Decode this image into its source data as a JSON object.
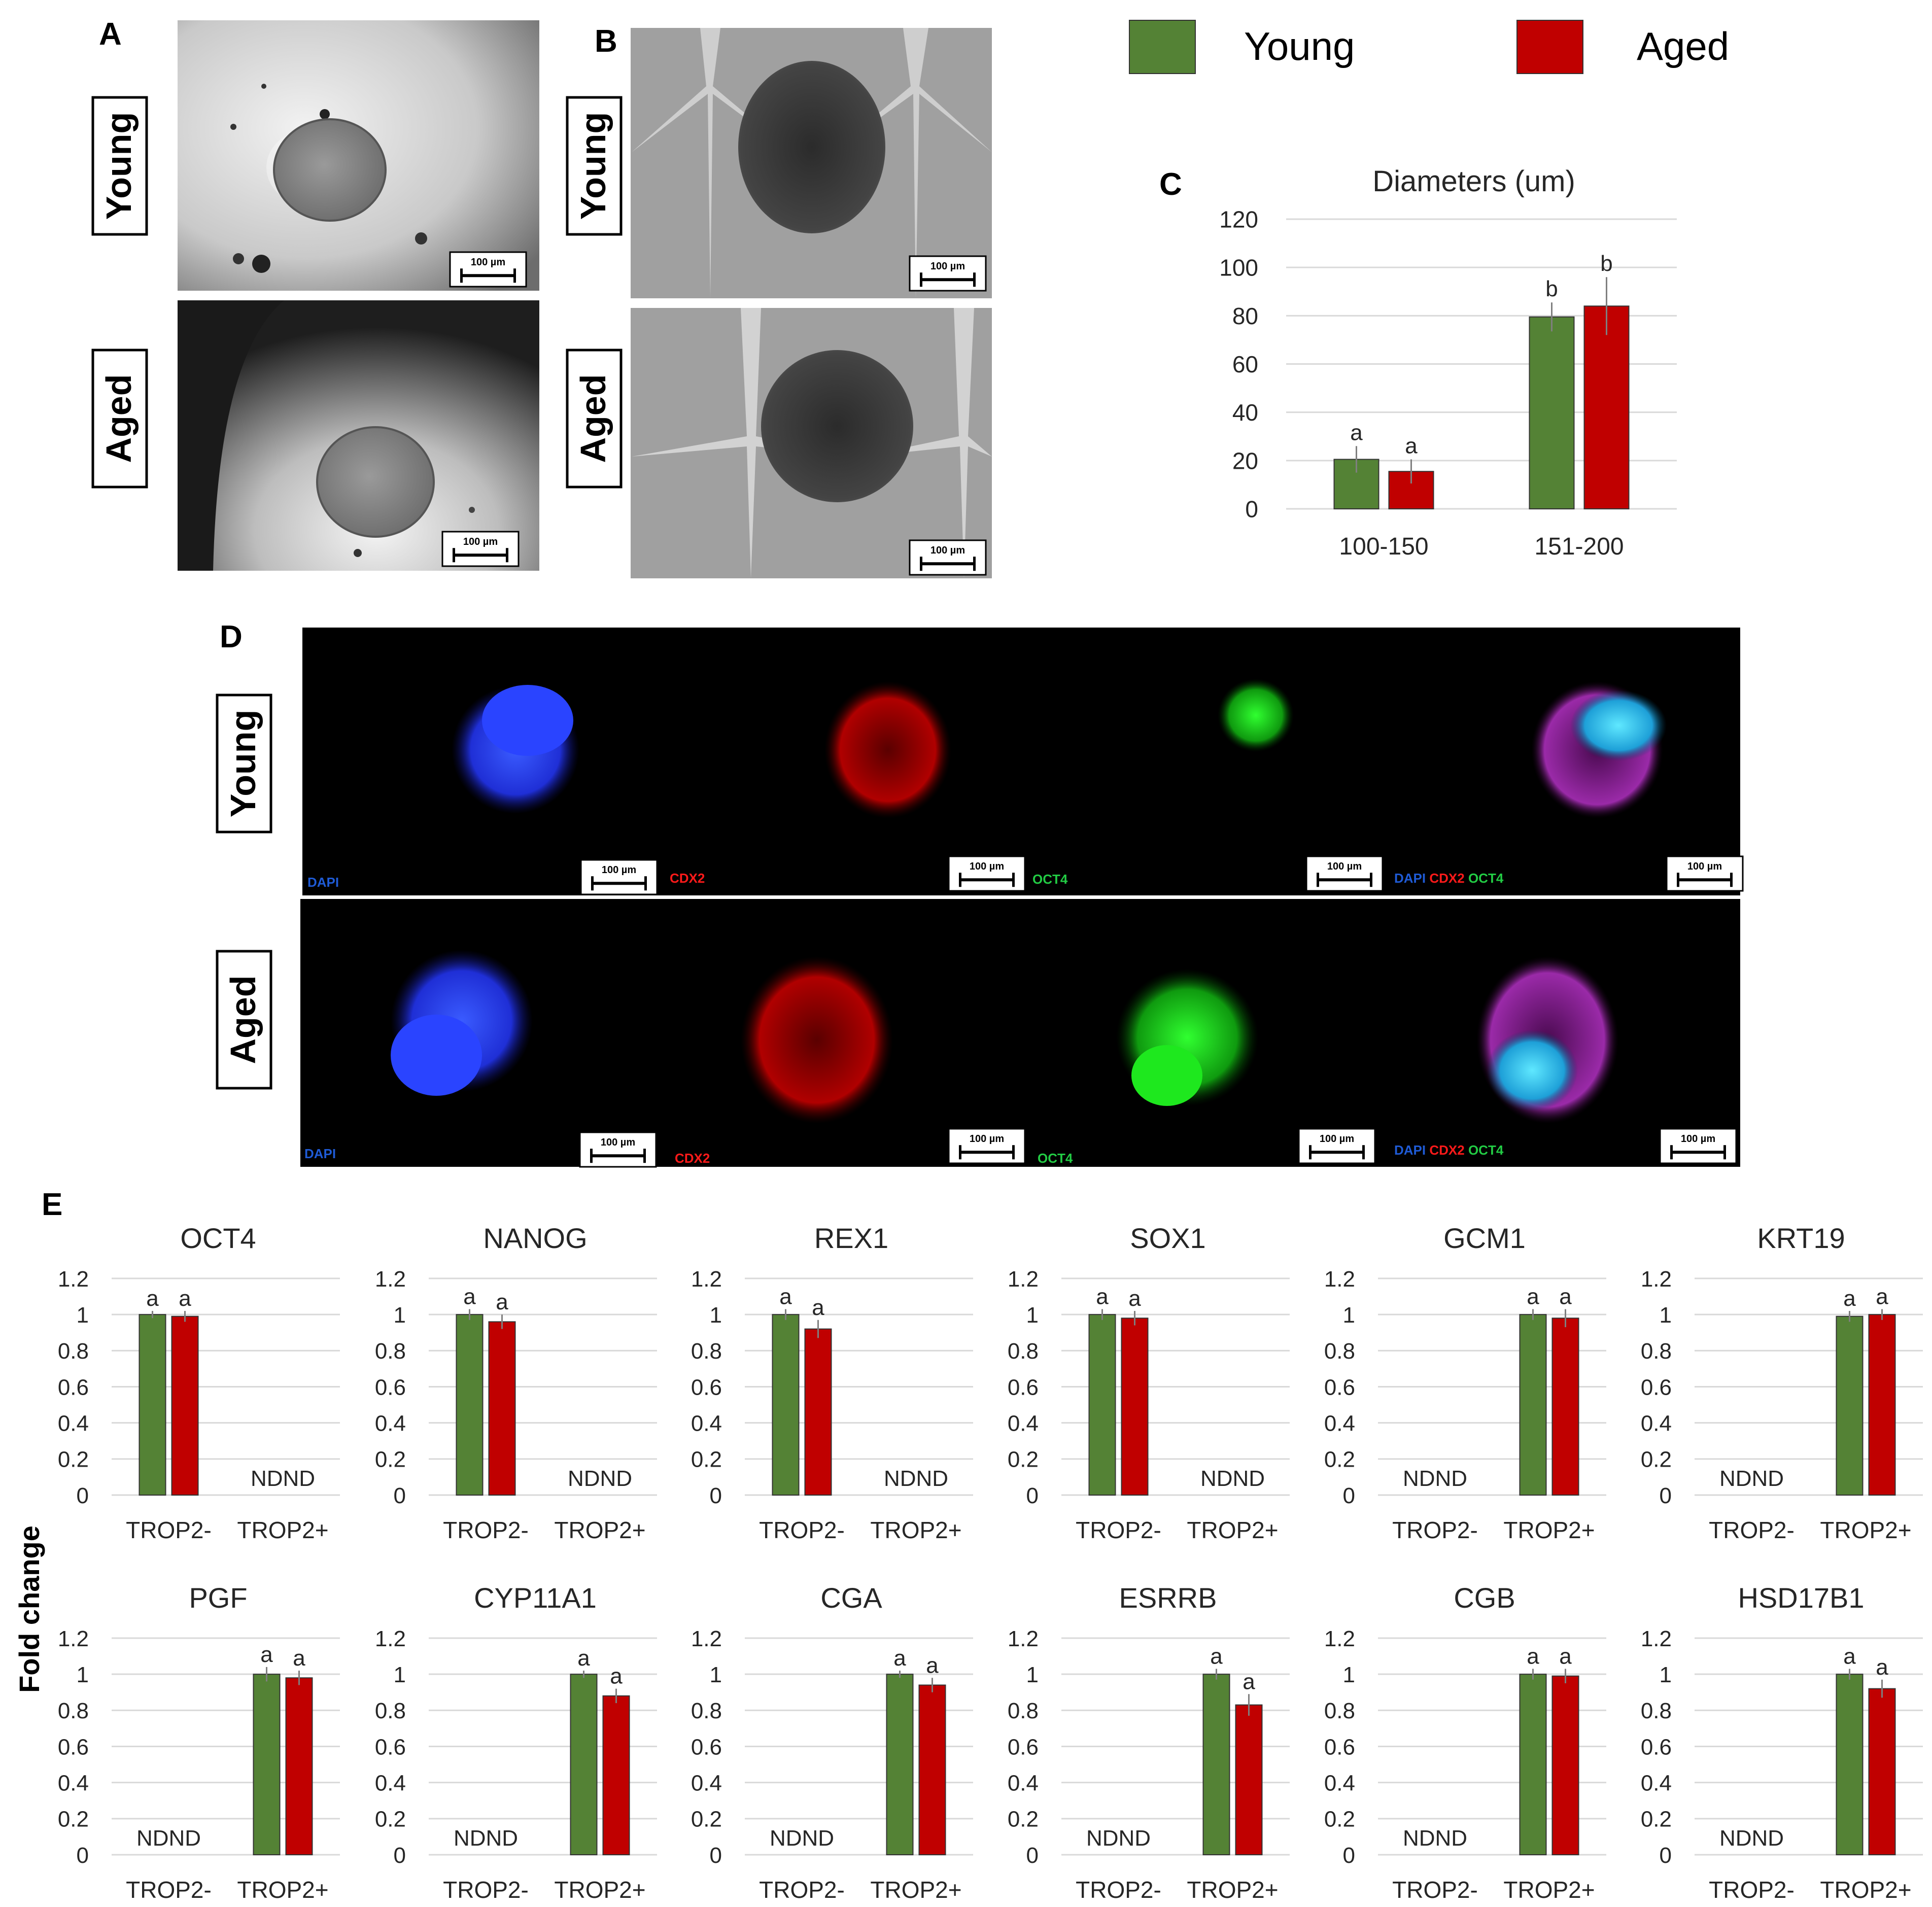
{
  "panel_letters": {
    "A": "A",
    "B": "B",
    "C": "C",
    "D": "D",
    "E": "E"
  },
  "row_labels": {
    "young": "Young",
    "aged": "Aged"
  },
  "scale_bar": "100 µm",
  "legend": [
    {
      "label": "Young",
      "color": "#548235"
    },
    {
      "label": "Aged",
      "color": "#c00000"
    }
  ],
  "stain_labels": {
    "dapi": "DAPI",
    "cdx2": "CDX2",
    "oct4": "OCT4",
    "merge": [
      "DAPI",
      "CDX2",
      "OCT4"
    ],
    "colors": {
      "dapi": "#1f5bd6",
      "cdx2": "#ff1a1a",
      "oct4": "#22cc44"
    }
  },
  "colors": {
    "young": "#548235",
    "aged": "#c00000",
    "grid": "#d9d9d9",
    "text": "#262626"
  },
  "fold_change_label": "Fold change",
  "nd_label": "ND",
  "chart_data": [
    {
      "type": "bar",
      "title": "Diameters (um)",
      "categories": [
        "100-150",
        "151-200"
      ],
      "series": [
        {
          "name": "Young",
          "values": [
            20.5,
            79.5
          ],
          "errors": [
            5.5,
            6.0
          ],
          "letters": [
            "a",
            "b"
          ]
        },
        {
          "name": "Aged",
          "values": [
            15.5,
            84.0
          ],
          "errors": [
            5.0,
            12.0
          ],
          "letters": [
            "a",
            "b"
          ]
        }
      ],
      "ylim": [
        0,
        120
      ],
      "yticks": [
        0,
        20,
        40,
        60,
        80,
        100,
        120
      ],
      "grid": true
    },
    {
      "type": "bar",
      "title": "OCT4",
      "categories": [
        "TROP2-",
        "TROP2+"
      ],
      "series": [
        {
          "name": "Young",
          "values": [
            1.0,
            null
          ],
          "errors": [
            0.02,
            0
          ],
          "letters": [
            "a",
            ""
          ],
          "nd": [
            false,
            true
          ]
        },
        {
          "name": "Aged",
          "values": [
            0.99,
            null
          ],
          "errors": [
            0.03,
            0
          ],
          "letters": [
            "a",
            ""
          ],
          "nd": [
            false,
            true
          ]
        }
      ],
      "ylim": [
        0,
        1.2
      ],
      "yticks": [
        "0",
        "0.2",
        "0.4",
        "0.6",
        "0.8",
        "1",
        "1.2"
      ],
      "grid": true
    },
    {
      "type": "bar",
      "title": "NANOG",
      "categories": [
        "TROP2-",
        "TROP2+"
      ],
      "series": [
        {
          "name": "Young",
          "values": [
            1.0,
            null
          ],
          "errors": [
            0.03,
            0
          ],
          "letters": [
            "a",
            ""
          ],
          "nd": [
            false,
            true
          ]
        },
        {
          "name": "Aged",
          "values": [
            0.96,
            null
          ],
          "errors": [
            0.04,
            0
          ],
          "letters": [
            "a",
            ""
          ],
          "nd": [
            false,
            true
          ]
        }
      ],
      "ylim": [
        0,
        1.2
      ],
      "yticks": [
        "0",
        "0.2",
        "0.4",
        "0.6",
        "0.8",
        "1",
        "1.2"
      ],
      "grid": true
    },
    {
      "type": "bar",
      "title": "REX1",
      "categories": [
        "TROP2-",
        "TROP2+"
      ],
      "series": [
        {
          "name": "Young",
          "values": [
            1.0,
            null
          ],
          "errors": [
            0.03,
            0
          ],
          "letters": [
            "a",
            ""
          ],
          "nd": [
            false,
            true
          ]
        },
        {
          "name": "Aged",
          "values": [
            0.92,
            null
          ],
          "errors": [
            0.05,
            0
          ],
          "letters": [
            "a",
            ""
          ],
          "nd": [
            false,
            true
          ]
        }
      ],
      "ylim": [
        0,
        1.2
      ],
      "yticks": [
        "0",
        "0.2",
        "0.4",
        "0.6",
        "0.8",
        "1",
        "1.2"
      ],
      "grid": true
    },
    {
      "type": "bar",
      "title": "SOX1",
      "categories": [
        "TROP2-",
        "TROP2+"
      ],
      "series": [
        {
          "name": "Young",
          "values": [
            1.0,
            null
          ],
          "errors": [
            0.03,
            0
          ],
          "letters": [
            "a",
            ""
          ],
          "nd": [
            false,
            true
          ]
        },
        {
          "name": "Aged",
          "values": [
            0.98,
            null
          ],
          "errors": [
            0.04,
            0
          ],
          "letters": [
            "a",
            ""
          ],
          "nd": [
            false,
            true
          ]
        }
      ],
      "ylim": [
        0,
        1.2
      ],
      "yticks": [
        "0",
        "0.2",
        "0.4",
        "0.6",
        "0.8",
        "1",
        "1.2"
      ],
      "grid": true
    },
    {
      "type": "bar",
      "title": "GCM1",
      "categories": [
        "TROP2-",
        "TROP2+"
      ],
      "series": [
        {
          "name": "Young",
          "values": [
            null,
            1.0
          ],
          "errors": [
            0,
            0.03
          ],
          "letters": [
            "",
            "a"
          ],
          "nd": [
            true,
            false
          ]
        },
        {
          "name": "Aged",
          "values": [
            null,
            0.98
          ],
          "errors": [
            0,
            0.05
          ],
          "letters": [
            "",
            "a"
          ],
          "nd": [
            true,
            false
          ]
        }
      ],
      "ylim": [
        0,
        1.2
      ],
      "yticks": [
        "0",
        "0.2",
        "0.4",
        "0.6",
        "0.8",
        "1",
        "1.2"
      ],
      "grid": true
    },
    {
      "type": "bar",
      "title": "KRT19",
      "categories": [
        "TROP2-",
        "TROP2+"
      ],
      "series": [
        {
          "name": "Young",
          "values": [
            null,
            0.99
          ],
          "errors": [
            0,
            0.03
          ],
          "letters": [
            "",
            "a"
          ],
          "nd": [
            true,
            false
          ]
        },
        {
          "name": "Aged",
          "values": [
            null,
            1.0
          ],
          "errors": [
            0,
            0.03
          ],
          "letters": [
            "",
            "a"
          ],
          "nd": [
            true,
            false
          ]
        }
      ],
      "ylim": [
        0,
        1.2
      ],
      "yticks": [
        "0",
        "0.2",
        "0.4",
        "0.6",
        "0.8",
        "1",
        "1.2"
      ],
      "grid": true
    },
    {
      "type": "bar",
      "title": "PGF",
      "categories": [
        "TROP2-",
        "TROP2+"
      ],
      "series": [
        {
          "name": "Young",
          "values": [
            null,
            1.0
          ],
          "errors": [
            0,
            0.04
          ],
          "letters": [
            "",
            "a"
          ],
          "nd": [
            true,
            false
          ]
        },
        {
          "name": "Aged",
          "values": [
            null,
            0.98
          ],
          "errors": [
            0,
            0.04
          ],
          "letters": [
            "",
            "a"
          ],
          "nd": [
            true,
            false
          ]
        }
      ],
      "ylim": [
        0,
        1.2
      ],
      "yticks": [
        "0",
        "0.2",
        "0.4",
        "0.6",
        "0.8",
        "1",
        "1.2"
      ],
      "grid": true
    },
    {
      "type": "bar",
      "title": "CYP11A1",
      "categories": [
        "TROP2-",
        "TROP2+"
      ],
      "series": [
        {
          "name": "Young",
          "values": [
            null,
            1.0
          ],
          "errors": [
            0,
            0.02
          ],
          "letters": [
            "",
            "a"
          ],
          "nd": [
            true,
            false
          ]
        },
        {
          "name": "Aged",
          "values": [
            null,
            0.88
          ],
          "errors": [
            0,
            0.04
          ],
          "letters": [
            "",
            "a"
          ],
          "nd": [
            true,
            false
          ]
        }
      ],
      "ylim": [
        0,
        1.2
      ],
      "yticks": [
        "0",
        "0.2",
        "0.4",
        "0.6",
        "0.8",
        "1",
        "1.2"
      ],
      "grid": true
    },
    {
      "type": "bar",
      "title": "CGA",
      "categories": [
        "TROP2-",
        "TROP2+"
      ],
      "series": [
        {
          "name": "Young",
          "values": [
            null,
            1.0
          ],
          "errors": [
            0,
            0.02
          ],
          "letters": [
            "",
            "a"
          ],
          "nd": [
            true,
            false
          ]
        },
        {
          "name": "Aged",
          "values": [
            null,
            0.94
          ],
          "errors": [
            0,
            0.04
          ],
          "letters": [
            "",
            "a"
          ],
          "nd": [
            true,
            false
          ]
        }
      ],
      "ylim": [
        0,
        1.2
      ],
      "yticks": [
        "0",
        "0.2",
        "0.4",
        "0.6",
        "0.8",
        "1",
        "1.2"
      ],
      "grid": true
    },
    {
      "type": "bar",
      "title": "ESRRB",
      "categories": [
        "TROP2-",
        "TROP2+"
      ],
      "series": [
        {
          "name": "Young",
          "values": [
            null,
            1.0
          ],
          "errors": [
            0,
            0.03
          ],
          "letters": [
            "",
            "a"
          ],
          "nd": [
            true,
            false
          ]
        },
        {
          "name": "Aged",
          "values": [
            null,
            0.83
          ],
          "errors": [
            0,
            0.06
          ],
          "letters": [
            "",
            "a"
          ],
          "nd": [
            true,
            false
          ]
        }
      ],
      "ylim": [
        0,
        1.2
      ],
      "yticks": [
        "0",
        "0.2",
        "0.4",
        "0.6",
        "0.8",
        "1",
        "1.2"
      ],
      "grid": true
    },
    {
      "type": "bar",
      "title": "CGB",
      "categories": [
        "TROP2-",
        "TROP2+"
      ],
      "series": [
        {
          "name": "Young",
          "values": [
            null,
            1.0
          ],
          "errors": [
            0,
            0.03
          ],
          "letters": [
            "",
            "a"
          ],
          "nd": [
            true,
            false
          ]
        },
        {
          "name": "Aged",
          "values": [
            null,
            0.99
          ],
          "errors": [
            0,
            0.04
          ],
          "letters": [
            "",
            "a"
          ],
          "nd": [
            true,
            false
          ]
        }
      ],
      "ylim": [
        0,
        1.2
      ],
      "yticks": [
        "0",
        "0.2",
        "0.4",
        "0.6",
        "0.8",
        "1",
        "1.2"
      ],
      "grid": true
    },
    {
      "type": "bar",
      "title": "HSD17B1",
      "categories": [
        "TROP2-",
        "TROP2+"
      ],
      "series": [
        {
          "name": "Young",
          "values": [
            null,
            1.0
          ],
          "errors": [
            0,
            0.03
          ],
          "letters": [
            "",
            "a"
          ],
          "nd": [
            true,
            false
          ]
        },
        {
          "name": "Aged",
          "values": [
            null,
            0.92
          ],
          "errors": [
            0,
            0.05
          ],
          "letters": [
            "",
            "a"
          ],
          "nd": [
            true,
            false
          ]
        }
      ],
      "ylim": [
        0,
        1.2
      ],
      "yticks": [
        "0",
        "0.2",
        "0.4",
        "0.6",
        "0.8",
        "1",
        "1.2"
      ],
      "grid": true
    }
  ]
}
